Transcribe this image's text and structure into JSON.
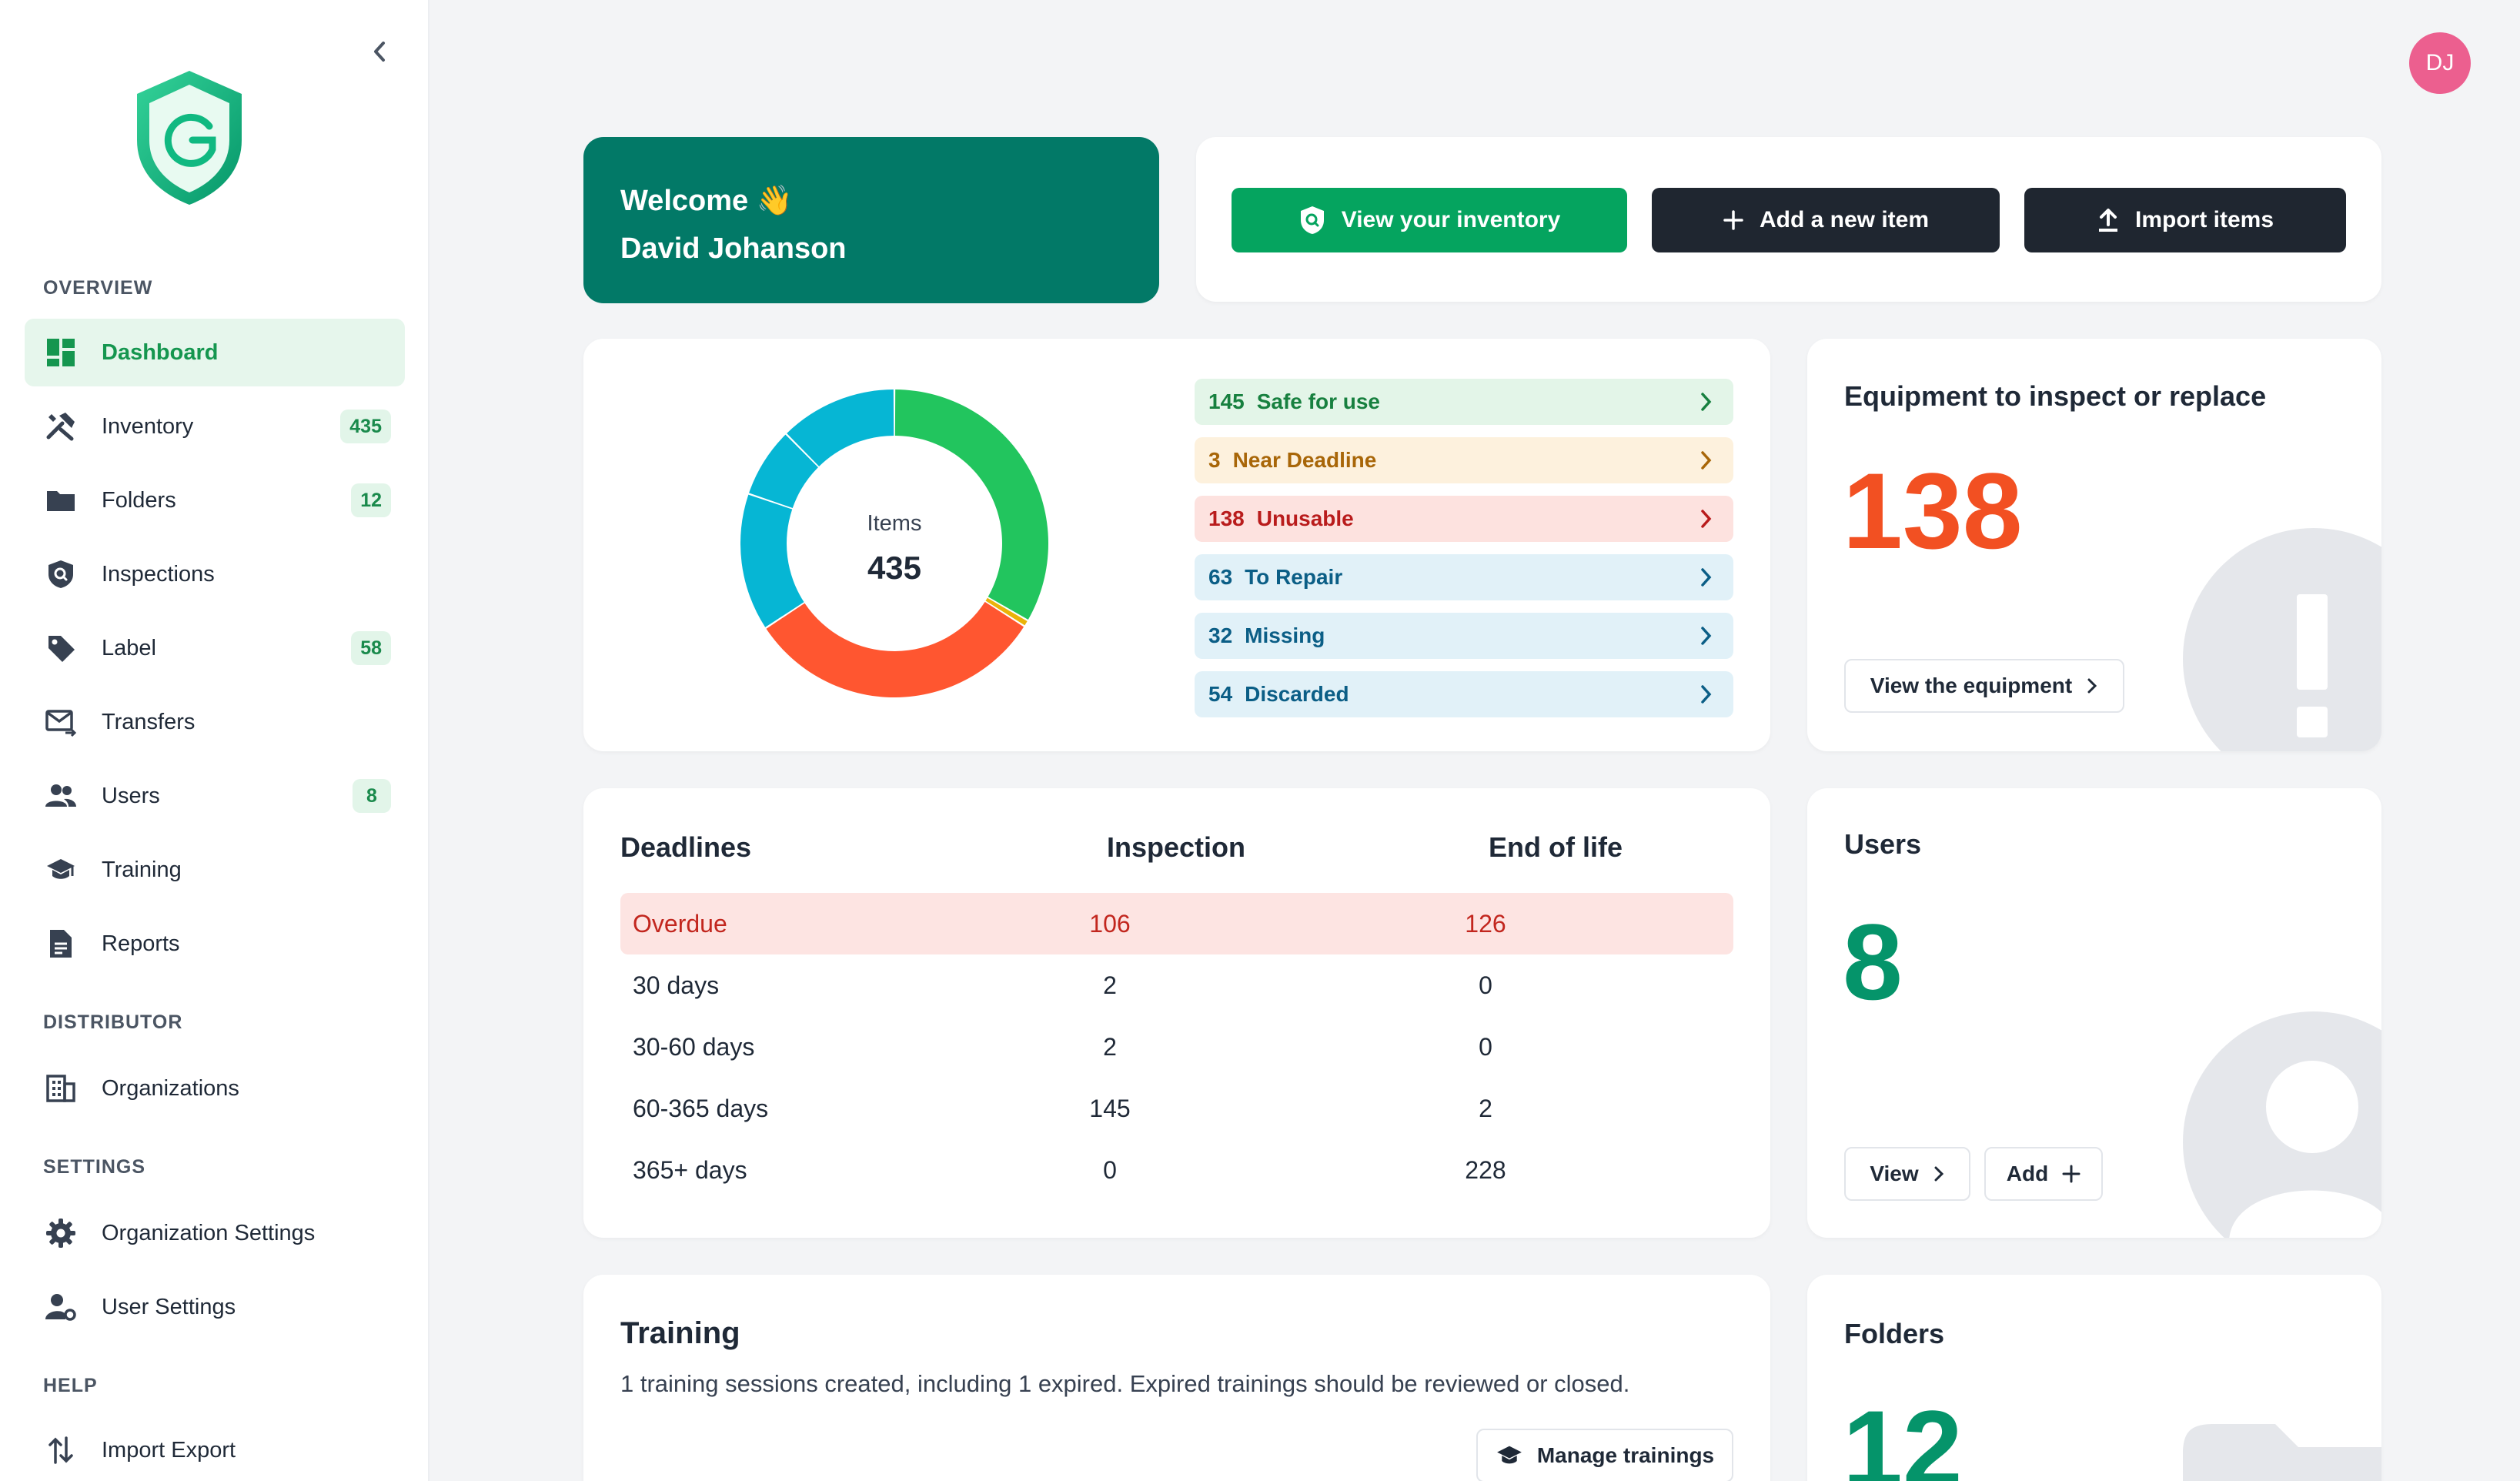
{
  "sidebar": {
    "sections": {
      "overview": "OVERVIEW",
      "distributor": "DISTRIBUTOR",
      "settings": "SETTINGS",
      "help": "HELP"
    },
    "items": [
      {
        "label": "Dashboard",
        "icon": "dashboard-icon"
      },
      {
        "label": "Inventory",
        "icon": "tools-icon",
        "badge": "435"
      },
      {
        "label": "Folders",
        "icon": "folder-icon",
        "badge": "12"
      },
      {
        "label": "Inspections",
        "icon": "shield-search-icon"
      },
      {
        "label": "Label",
        "icon": "tag-icon",
        "badge": "58"
      },
      {
        "label": "Transfers",
        "icon": "mail-transfer-icon"
      },
      {
        "label": "Users",
        "icon": "users-icon",
        "badge": "8"
      },
      {
        "label": "Training",
        "icon": "graduation-cap-icon"
      },
      {
        "label": "Reports",
        "icon": "document-icon"
      },
      {
        "label": "Organizations",
        "icon": "building-icon"
      },
      {
        "label": "Organization Settings",
        "icon": "gear-icon"
      },
      {
        "label": "User Settings",
        "icon": "user-gear-icon"
      },
      {
        "label": "Import Export",
        "icon": "import-export-icon"
      }
    ]
  },
  "avatar": {
    "initials": "DJ",
    "color": "#ec5f8f"
  },
  "welcome": {
    "line1": "Welcome 👋",
    "line2": "David Johanson"
  },
  "actions": {
    "view_inventory": "View your inventory",
    "add_item": "Add a new item",
    "import_items": "Import items"
  },
  "status": {
    "center_label": "Items",
    "center_value": "435",
    "pills": [
      {
        "count": "145",
        "label": "Safe for use",
        "color": "#22c55e",
        "bg": "#e3f5e8",
        "text": "#17803f"
      },
      {
        "count": "3",
        "label": "Near Deadline",
        "color": "#eab308",
        "bg": "#fdf1dd",
        "text": "#a86608"
      },
      {
        "count": "138",
        "label": "Unusable",
        "color": "#ff5630",
        "bg": "#fde2df",
        "text": "#b91c1c"
      },
      {
        "count": "63",
        "label": "To Repair",
        "color": "#06b6d4",
        "bg": "#e1f1f8",
        "text": "#0b5e86"
      },
      {
        "count": "32",
        "label": "Missing",
        "color": "#06b6d4",
        "bg": "#e1f1f8",
        "text": "#0b5e86"
      },
      {
        "count": "54",
        "label": "Discarded",
        "color": "#06b6d4",
        "bg": "#e1f1f8",
        "text": "#0b5e86"
      }
    ]
  },
  "equipment": {
    "title": "Equipment to inspect or replace",
    "value": "138",
    "button": "View the equipment"
  },
  "deadlines": {
    "headers": [
      "Deadlines",
      "Inspection",
      "End of life"
    ],
    "rows": [
      {
        "label": "Overdue",
        "inspection": "106",
        "eol": "126"
      },
      {
        "label": "30 days",
        "inspection": "2",
        "eol": "0"
      },
      {
        "label": "30-60 days",
        "inspection": "2",
        "eol": "0"
      },
      {
        "label": "60-365 days",
        "inspection": "145",
        "eol": "2"
      },
      {
        "label": "365+ days",
        "inspection": "0",
        "eol": "228"
      }
    ]
  },
  "users": {
    "title": "Users",
    "value": "8",
    "view": "View",
    "add": "Add"
  },
  "training": {
    "title": "Training",
    "description": "1 training sessions created, including 1 expired. Expired trainings should be reviewed or closed.",
    "button": "Manage trainings"
  },
  "folders": {
    "title": "Folders",
    "value": "12"
  }
}
